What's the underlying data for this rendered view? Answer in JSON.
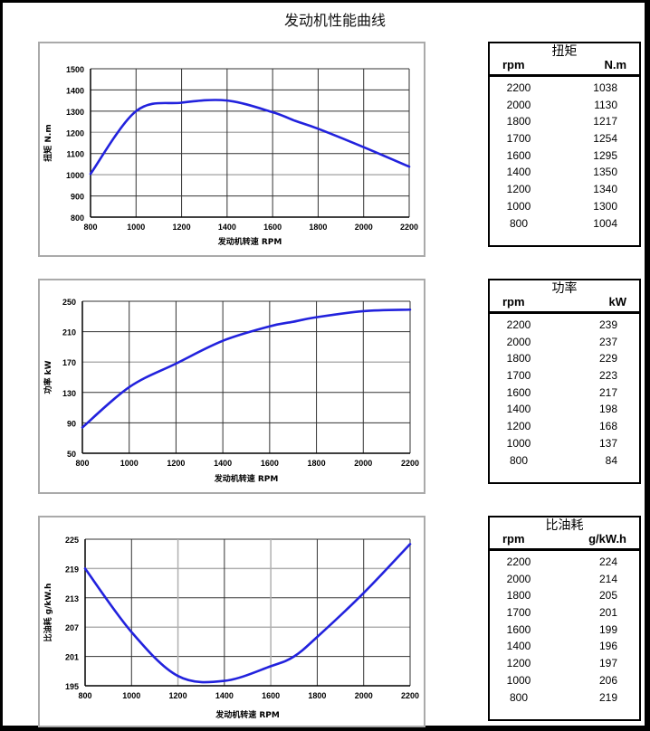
{
  "page": {
    "title": "发动机性能曲线"
  },
  "tables": [
    {
      "title": "扭矩",
      "col1": "rpm",
      "col2": "N.m",
      "rows": [
        [
          "2200",
          "1038"
        ],
        [
          "2000",
          "1130"
        ],
        [
          "1800",
          "1217"
        ],
        [
          "1700",
          "1254"
        ],
        [
          "1600",
          "1295"
        ],
        [
          "1400",
          "1350"
        ],
        [
          "1200",
          "1340"
        ],
        [
          "1000",
          "1300"
        ],
        [
          "800",
          "1004"
        ]
      ]
    },
    {
      "title": "功率",
      "col1": "rpm",
      "col2": "kW",
      "rows": [
        [
          "2200",
          "239"
        ],
        [
          "2000",
          "237"
        ],
        [
          "1800",
          "229"
        ],
        [
          "1700",
          "223"
        ],
        [
          "1600",
          "217"
        ],
        [
          "1400",
          "198"
        ],
        [
          "1200",
          "168"
        ],
        [
          "1000",
          "137"
        ],
        [
          "800",
          "84"
        ]
      ]
    },
    {
      "title": "比油耗",
      "col1": "rpm",
      "col2": "g/kW.h",
      "rows": [
        [
          "2200",
          "224"
        ],
        [
          "2000",
          "214"
        ],
        [
          "1800",
          "205"
        ],
        [
          "1700",
          "201"
        ],
        [
          "1600",
          "199"
        ],
        [
          "1400",
          "196"
        ],
        [
          "1200",
          "197"
        ],
        [
          "1000",
          "206"
        ],
        [
          "800",
          "219"
        ]
      ]
    }
  ],
  "chart_data": [
    {
      "type": "line",
      "title": "扭矩",
      "xlabel": "发动机转速 RPM",
      "ylabel": "扭矩 N.m",
      "x": [
        800,
        1000,
        1200,
        1400,
        1600,
        1700,
        1800,
        2000,
        2200
      ],
      "series": [
        {
          "name": "扭矩",
          "values": [
            1004,
            1300,
            1340,
            1350,
            1295,
            1254,
            1217,
            1130,
            1038
          ]
        }
      ],
      "xlim": [
        800,
        2200
      ],
      "ylim": [
        800,
        1500
      ],
      "xticks": [
        800,
        1000,
        1200,
        1400,
        1600,
        1800,
        2000,
        2200
      ],
      "yticks": [
        800,
        900,
        1000,
        1100,
        1200,
        1300,
        1400,
        1500
      ],
      "grid": true,
      "color": "#2222dd"
    },
    {
      "type": "line",
      "title": "功率",
      "xlabel": "发动机转速  RPM",
      "ylabel": "功率  kW",
      "x": [
        800,
        1000,
        1200,
        1400,
        1600,
        1700,
        1800,
        2000,
        2200
      ],
      "series": [
        {
          "name": "功率",
          "values": [
            84,
            137,
            168,
            198,
            217,
            223,
            229,
            237,
            239
          ]
        }
      ],
      "xlim": [
        800,
        2200
      ],
      "ylim": [
        50,
        250
      ],
      "xticks": [
        800,
        1000,
        1200,
        1400,
        1600,
        1800,
        2000,
        2200
      ],
      "yticks": [
        50,
        90,
        130,
        170,
        210,
        250
      ],
      "grid": true,
      "color": "#2222dd"
    },
    {
      "type": "line",
      "title": "比油耗",
      "xlabel": "发动机转速 RPM",
      "ylabel": "比油耗 g/kW.h",
      "x": [
        800,
        1000,
        1200,
        1400,
        1600,
        1700,
        1800,
        2000,
        2200
      ],
      "series": [
        {
          "name": "比油耗",
          "values": [
            219,
            206,
            197,
            196,
            199,
            201,
            205,
            214,
            224
          ]
        }
      ],
      "xlim": [
        800,
        2200
      ],
      "ylim": [
        195,
        225
      ],
      "xticks": [
        800,
        1000,
        1200,
        1400,
        1600,
        1800,
        2000,
        2200
      ],
      "yticks": [
        195,
        201,
        207,
        213,
        219,
        225
      ],
      "grid": true,
      "color": "#2222dd"
    }
  ]
}
